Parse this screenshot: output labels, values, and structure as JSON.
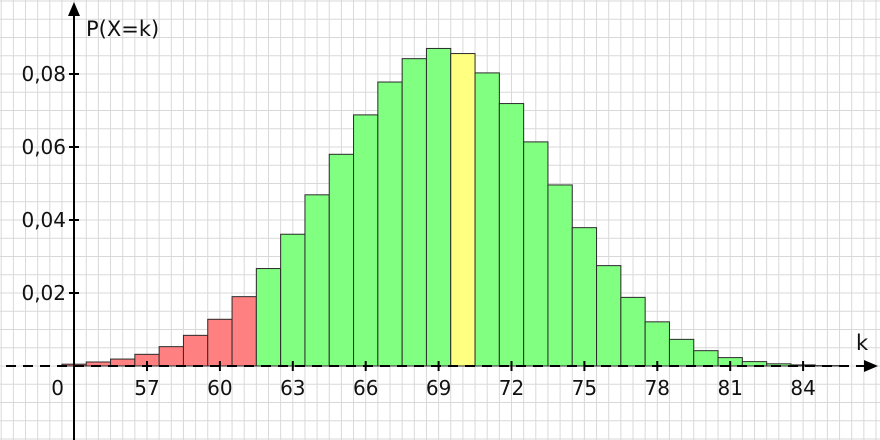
{
  "chart_data": {
    "type": "bar",
    "ylabel": "P(X=k)",
    "xlabel": "k",
    "origin_label": "0",
    "x_ticks": [
      57,
      60,
      63,
      66,
      69,
      72,
      75,
      78,
      81,
      84
    ],
    "x_tick_labels": [
      "57",
      "60",
      "63",
      "66",
      "69",
      "72",
      "75",
      "78",
      "81",
      "84"
    ],
    "y_ticks": [
      0.02,
      0.04,
      0.06,
      0.08
    ],
    "y_tick_labels": [
      "0,02",
      "0,04",
      "0,06",
      "0,08"
    ],
    "xlim": [
      53.5,
      86.5
    ],
    "ylim": [
      0,
      0.09
    ],
    "grid": true,
    "categories": [
      54,
      55,
      56,
      57,
      58,
      59,
      60,
      61,
      62,
      63,
      64,
      65,
      66,
      67,
      68,
      69,
      70,
      71,
      72,
      73,
      74,
      75,
      76,
      77,
      78,
      79,
      80,
      81,
      82,
      83,
      84,
      85
    ],
    "values": [
      0.0005,
      0.0011,
      0.0019,
      0.0032,
      0.0053,
      0.0084,
      0.0128,
      0.019,
      0.0267,
      0.0361,
      0.0469,
      0.058,
      0.0688,
      0.0778,
      0.0842,
      0.087,
      0.0856,
      0.0803,
      0.0719,
      0.0614,
      0.0496,
      0.0379,
      0.0275,
      0.0188,
      0.0121,
      0.0073,
      0.0042,
      0.0023,
      0.0012,
      0.0006,
      0.0003,
      0.0001
    ],
    "bar_colors": {
      "rejection": "#ff8080",
      "acceptance": "#80ff80",
      "expected": "#ffff80"
    },
    "rejection_max_k": 61,
    "expected_k": 70
  }
}
